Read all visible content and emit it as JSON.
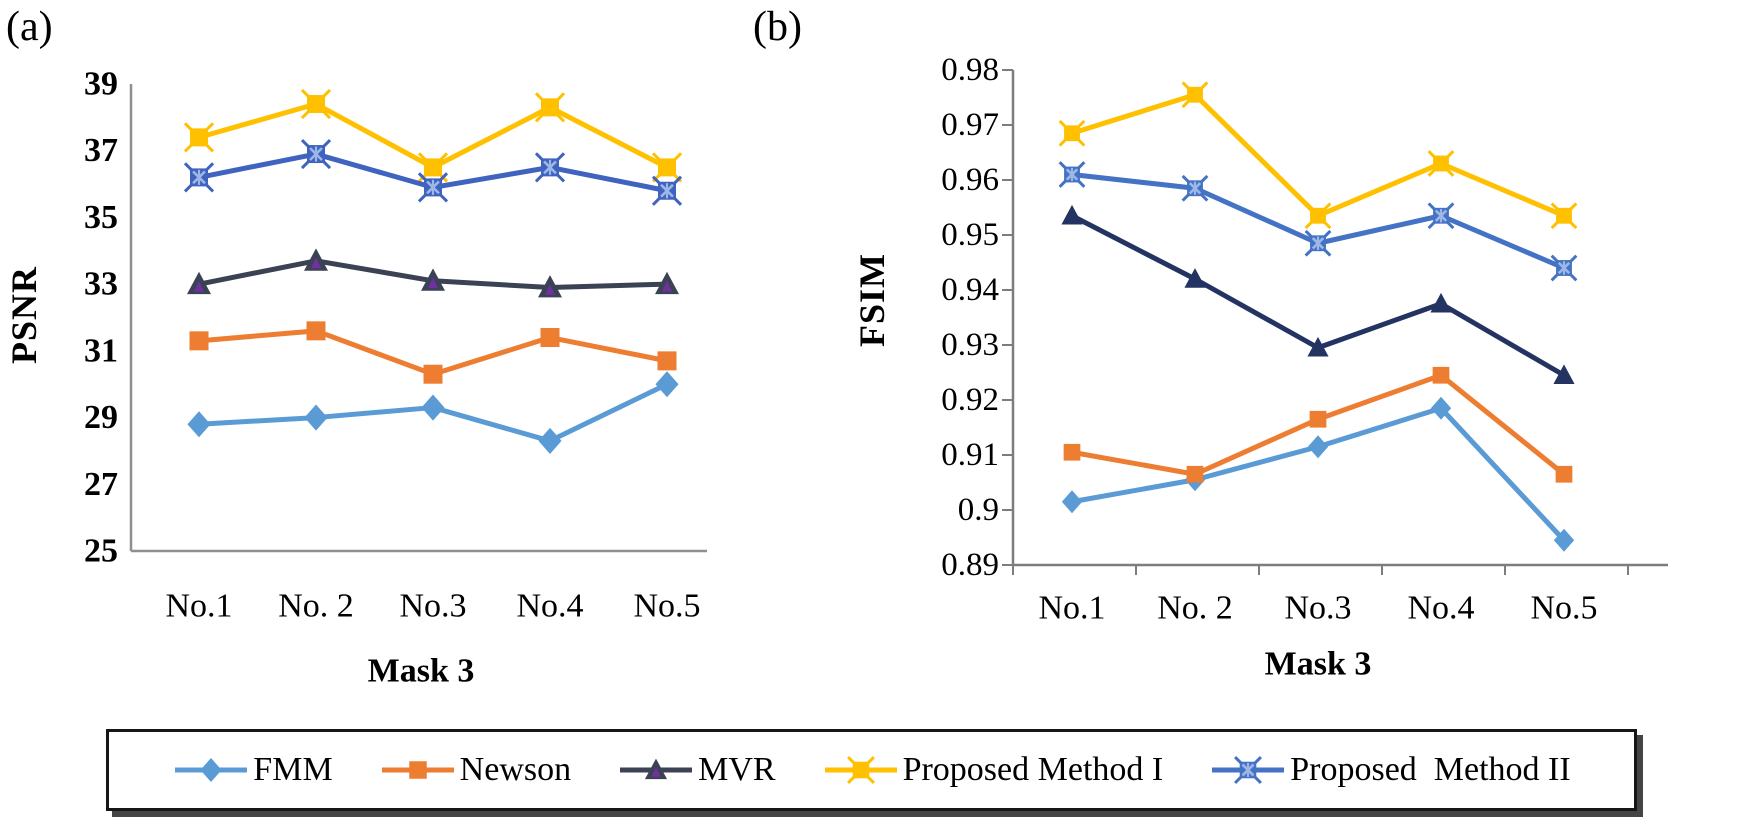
{
  "figure": {
    "panel_a_tag": "(a)",
    "panel_b_tag": "(b)"
  },
  "legend": {
    "items": [
      {
        "label": "FMM",
        "color": "#5B9BD5",
        "marker": "diamond"
      },
      {
        "label": "Newson",
        "color": "#ED7D31",
        "marker": "square"
      },
      {
        "label": "MVR",
        "color": "#3A4254",
        "marker": "triangle",
        "marker_inner": "#7030A0"
      },
      {
        "label": "Proposed Method I",
        "color": "#FFC000",
        "marker": "square-x"
      },
      {
        "label": "Proposed  Method II",
        "color": "#4472C4",
        "marker": "square-x",
        "marker_inner": "#9DB7E8"
      }
    ]
  },
  "chart_data": [
    {
      "panel": "(a)",
      "type": "line",
      "xlabel": "Mask 3",
      "ylabel": "PSNR",
      "categories": [
        "No.1",
        "No. 2",
        "No.3",
        "No.4",
        "No.5"
      ],
      "ylim": [
        25,
        39
      ],
      "ytick_step": 2,
      "ytick_labels": [
        "25",
        "27",
        "29",
        "31",
        "33",
        "35",
        "37",
        "39"
      ],
      "grid": false,
      "legend_position": "shared-bottom",
      "series": [
        {
          "name": "FMM",
          "color": "#5B9BD5",
          "marker": "diamond",
          "values": [
            28.8,
            29.0,
            29.3,
            28.3,
            30.0
          ]
        },
        {
          "name": "Newson",
          "color": "#ED7D31",
          "marker": "square",
          "values": [
            31.3,
            31.6,
            30.3,
            31.4,
            30.7
          ]
        },
        {
          "name": "MVR",
          "color": "#3A4254",
          "marker": "triangle",
          "marker_inner": "#7030A0",
          "values": [
            33.0,
            33.7,
            33.1,
            32.9,
            33.0
          ]
        },
        {
          "name": "Proposed Method I",
          "color": "#FFC000",
          "marker": "square-x",
          "values": [
            37.4,
            38.4,
            36.5,
            38.3,
            36.5
          ]
        },
        {
          "name": "Proposed Method II",
          "color": "#3F63BE",
          "marker": "square-x",
          "marker_inner": "#9DB7E8",
          "values": [
            36.2,
            36.9,
            35.9,
            36.5,
            35.8
          ]
        }
      ]
    },
    {
      "panel": "(b)",
      "type": "line",
      "xlabel": "Mask 3",
      "ylabel": "FSIM",
      "categories": [
        "No.1",
        "No. 2",
        "No.3",
        "No.4",
        "No.5"
      ],
      "ylim": [
        0.89,
        0.98
      ],
      "ytick_step": 0.01,
      "ytick_labels": [
        "0.89",
        "0.9",
        "0.91",
        "0.92",
        "0.93",
        "0.94",
        "0.95",
        "0.96",
        "0.97",
        "0.98"
      ],
      "grid": false,
      "legend_position": "shared-bottom",
      "series": [
        {
          "name": "FMM",
          "color": "#5B9BD5",
          "marker": "diamond",
          "values": [
            0.9015,
            0.9055,
            0.9115,
            0.9185,
            0.8945
          ]
        },
        {
          "name": "Newson",
          "color": "#ED7D31",
          "marker": "square",
          "values": [
            0.9105,
            0.9065,
            0.9165,
            0.9245,
            0.9065
          ]
        },
        {
          "name": "MVR",
          "color": "#243462",
          "marker": "triangle",
          "values": [
            0.9535,
            0.942,
            0.9295,
            0.9375,
            0.9245
          ]
        },
        {
          "name": "Proposed Method I",
          "color": "#FFC000",
          "marker": "square-x",
          "values": [
            0.9685,
            0.9755,
            0.9535,
            0.963,
            0.9535
          ]
        },
        {
          "name": "Proposed Method II",
          "color": "#4472C4",
          "marker": "square-x",
          "marker_inner": "#9DB7E8",
          "values": [
            0.961,
            0.9585,
            0.9485,
            0.9535,
            0.944
          ]
        }
      ]
    }
  ]
}
